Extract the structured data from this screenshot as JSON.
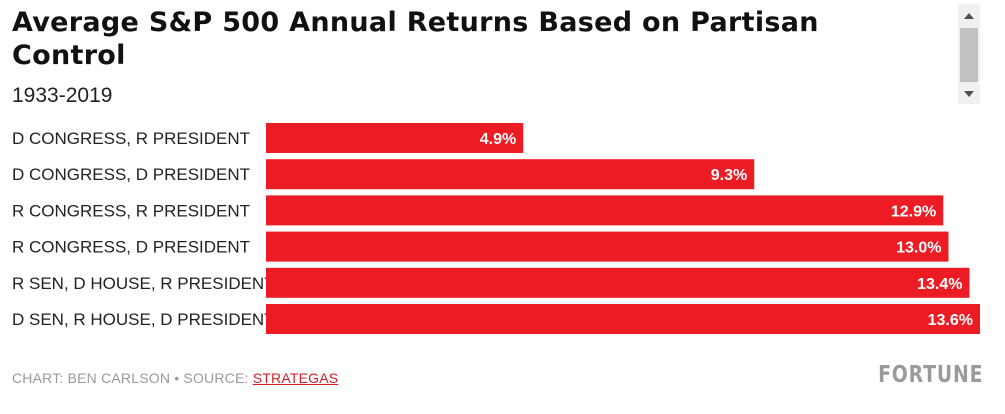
{
  "header": {
    "title": "Average S&P 500 Annual Returns Based on Partisan Control",
    "subtitle": "1933-2019"
  },
  "chart_data": {
    "type": "bar",
    "orientation": "horizontal",
    "categories": [
      "D CONGRESS, R PRESIDENT",
      "D CONGRESS, D PRESIDENT",
      "R CONGRESS, R PRESIDENT",
      "R CONGRESS, D PRESIDENT",
      "R SEN, D HOUSE, R PRESIDENT",
      "D SEN, R HOUSE, D PRESIDENT"
    ],
    "values": [
      4.9,
      9.3,
      12.9,
      13.0,
      13.4,
      13.6
    ],
    "value_labels": [
      "4.9%",
      "9.3%",
      "12.9%",
      "13.0%",
      "13.4%",
      "13.6%"
    ],
    "xlim": [
      0,
      13.6
    ],
    "bar_color": "#ed1c24",
    "grid": false,
    "axis_visible": false
  },
  "footer": {
    "credit": "CHART: BEN CARLSON • SOURCE: ",
    "source_link": "STRATEGAS",
    "logo": "FORTUNE"
  },
  "scrollbar": {
    "up_icon": "triangle-up",
    "down_icon": "triangle-down"
  }
}
